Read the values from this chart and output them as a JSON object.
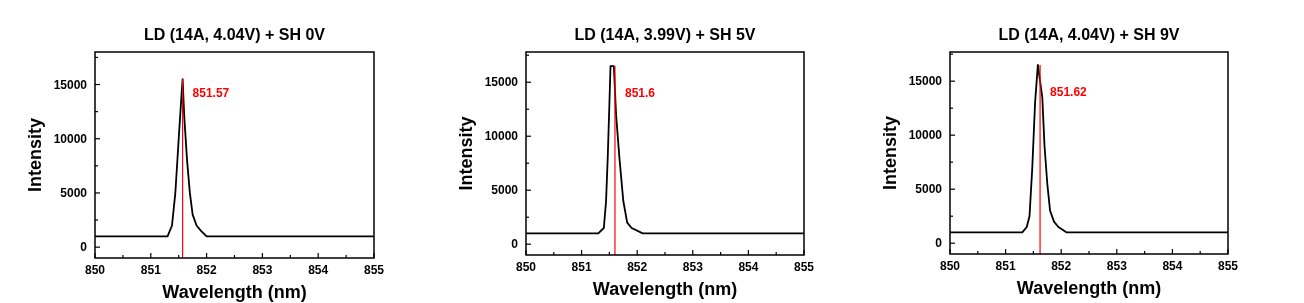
{
  "chart_data": [
    {
      "type": "line",
      "title": "LD (14A, 4.04V) + SH 0V",
      "xlabel": "Wavelength (nm)",
      "ylabel": "Intensity",
      "xlim": [
        850,
        855
      ],
      "ylim": [
        -1000,
        18000
      ],
      "xticks": [
        850,
        {
          "value": 850.5,
          "label": null
        },
        851,
        {
          "value": 851.5,
          "label": null
        },
        852,
        {
          "value": 852.5,
          "label": null
        },
        853,
        {
          "value": 853.5,
          "label": null
        },
        854,
        {
          "value": 854.5,
          "label": null
        },
        855
      ],
      "yticks": [
        0,
        {
          "value": 2500,
          "label": null
        },
        5000,
        {
          "value": 7500,
          "label": null
        },
        10000,
        {
          "value": 12500,
          "label": null
        },
        15000,
        {
          "value": 17500,
          "label": null
        }
      ],
      "series": [
        {
          "color": "#000000",
          "x": [
            850,
            850.5,
            851,
            851.2,
            851.3,
            851.38,
            851.44,
            851.5,
            851.55,
            851.57,
            851.6,
            851.65,
            851.7,
            851.75,
            851.82,
            851.9,
            852,
            852.2,
            853,
            854,
            855
          ],
          "values": [
            1000,
            1000,
            1000,
            1000,
            1000,
            2000,
            5000,
            10000,
            14000,
            15500,
            12000,
            8000,
            5000,
            3000,
            2000,
            1500,
            1000,
            1000,
            1000,
            1000,
            1000
          ]
        }
      ],
      "ref_lines": [
        {
          "axis": "x",
          "value": 851.57,
          "label": "851.57",
          "color": "#ff0000"
        }
      ],
      "line_style": "solid",
      "grid": false
    },
    {
      "type": "line",
      "title": "LD (14A, 3.99V) + SH 5V",
      "xlabel": "Wavelength (nm)",
      "ylabel": "Intensity",
      "xlim": [
        850,
        855
      ],
      "ylim": [
        -1000,
        17800
      ],
      "xticks": [
        850,
        {
          "value": 850.5,
          "label": null
        },
        851,
        {
          "value": 851.5,
          "label": null
        },
        852,
        {
          "value": 852.5,
          "label": null
        },
        853,
        {
          "value": 853.5,
          "label": null
        },
        854,
        {
          "value": 854.5,
          "label": null
        },
        855
      ],
      "yticks": [
        0,
        {
          "value": 2500,
          "label": null
        },
        5000,
        {
          "value": 7500,
          "label": null
        },
        10000,
        {
          "value": 12500,
          "label": null
        },
        15000,
        {
          "value": 17500,
          "label": null
        }
      ],
      "series": [
        {
          "color": "#000000",
          "x": [
            850,
            850.5,
            851,
            851.2,
            851.3,
            851.4,
            851.44,
            851.47,
            851.5,
            851.52,
            851.58,
            851.62,
            851.68,
            851.75,
            851.82,
            851.9,
            852.1,
            852.5,
            853,
            854,
            855
          ],
          "values": [
            1000,
            1000,
            1000,
            1000,
            1000,
            1500,
            4000,
            8000,
            13000,
            16500,
            16500,
            12000,
            8000,
            4000,
            2000,
            1500,
            1000,
            1000,
            1000,
            1000,
            1000
          ]
        }
      ],
      "ref_lines": [
        {
          "axis": "x",
          "value": 851.6,
          "label": "851.6",
          "color": "#ff0000"
        }
      ],
      "line_style": "solid",
      "grid": false
    },
    {
      "type": "line",
      "title": "LD (14A, 4.04V) + SH 9V",
      "xlabel": "Wavelength (nm)",
      "ylabel": "Intensity",
      "xlim": [
        850,
        855
      ],
      "ylim": [
        -1000,
        17700
      ],
      "xticks": [
        850,
        {
          "value": 850.5,
          "label": null
        },
        851,
        {
          "value": 851.5,
          "label": null
        },
        852,
        {
          "value": 852.5,
          "label": null
        },
        853,
        {
          "value": 853.5,
          "label": null
        },
        854,
        {
          "value": 854.5,
          "label": null
        },
        855
      ],
      "yticks": [
        0,
        {
          "value": 2500,
          "label": null
        },
        5000,
        {
          "value": 7500,
          "label": null
        },
        10000,
        {
          "value": 12500,
          "label": null
        },
        15000,
        {
          "value": 17500,
          "label": null
        }
      ],
      "series": [
        {
          "color": "#000000",
          "x": [
            850,
            850.5,
            851,
            851.2,
            851.3,
            851.38,
            851.43,
            851.48,
            851.53,
            851.58,
            851.62,
            851.66,
            851.7,
            851.75,
            851.8,
            851.87,
            851.95,
            852.1,
            852.5,
            853,
            854,
            855
          ],
          "values": [
            1000,
            1000,
            1000,
            1000,
            1000,
            1500,
            2500,
            7000,
            13000,
            16500,
            15000,
            13500,
            9000,
            5500,
            3000,
            2000,
            1500,
            1000,
            1000,
            1000,
            1000,
            1000
          ]
        }
      ],
      "ref_lines": [
        {
          "axis": "x",
          "value": 851.62,
          "label": "851.62",
          "color": "#ff0000"
        }
      ],
      "line_style": "solid",
      "grid": false
    }
  ]
}
